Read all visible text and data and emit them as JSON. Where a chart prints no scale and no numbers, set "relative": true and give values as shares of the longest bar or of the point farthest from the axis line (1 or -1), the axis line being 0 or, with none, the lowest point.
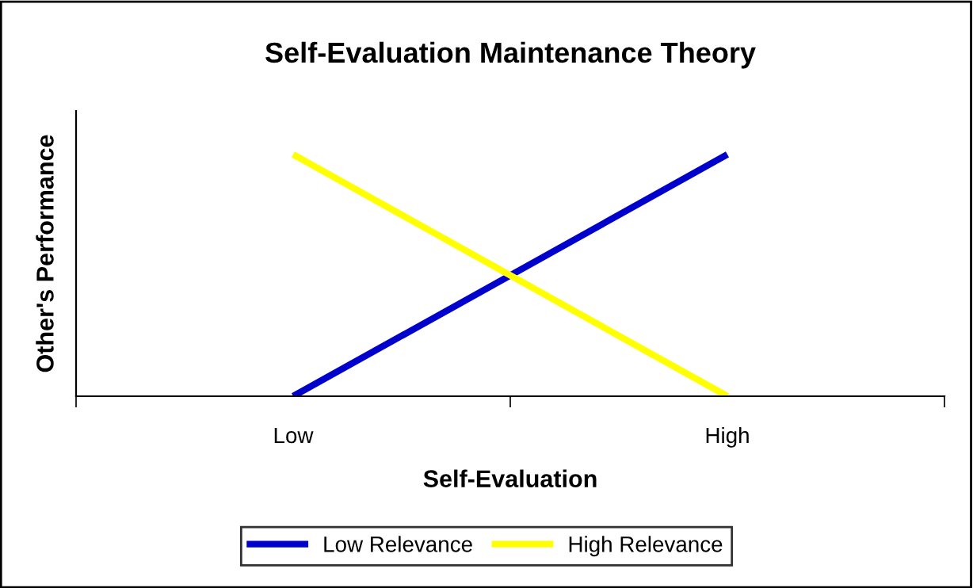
{
  "chart_data": {
    "type": "line",
    "title": "Self-Evaluation Maintenance Theory",
    "xlabel": "Self-Evaluation",
    "ylabel": "Other's Performance",
    "categories": [
      "Low",
      "High"
    ],
    "relative": true,
    "series": [
      {
        "name": "Low Relevance",
        "color": "#0000cc",
        "values": [
          0,
          1
        ]
      },
      {
        "name": "High Relevance",
        "color": "#ffff00",
        "values": [
          1,
          0
        ]
      }
    ],
    "legend": "bottom",
    "grid": false,
    "marker": "none",
    "line_style": "solid"
  }
}
